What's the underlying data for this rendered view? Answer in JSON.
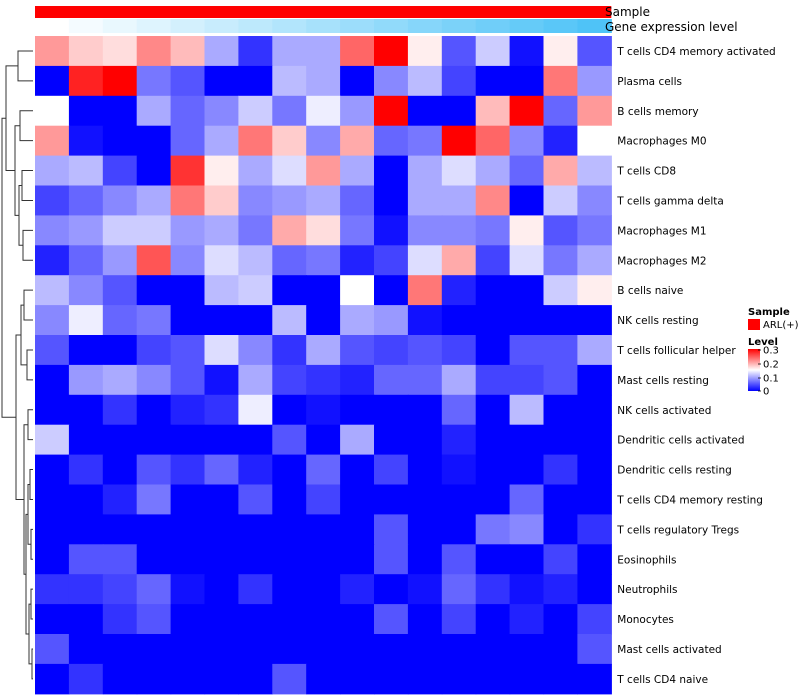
{
  "chart_data": {
    "type": "heatmap",
    "column_annotations": [
      {
        "name": "Sample",
        "color": "#ff0000"
      },
      {
        "name": "Gene expression level",
        "colors": [
          "#ffffff",
          "#4fc3f7"
        ]
      }
    ],
    "rows": [
      "T cells CD4 memory activated",
      "Plasma cells",
      "B cells memory",
      "Macrophages M0",
      "T cells CD8",
      "T cells gamma delta",
      "Macrophages M1",
      "Macrophages M2",
      "B cells naive",
      "NK cells resting",
      "T cells follicular helper",
      "Mast cells resting",
      "NK cells activated",
      "Dendritic cells activated",
      "Dendritic cells resting",
      "T cells CD4 memory resting",
      "T cells regulatory  Tregs",
      "Eosinophils",
      "Neutrophils",
      "Monocytes",
      "Mast cells activated",
      "T cells CD4 naive"
    ],
    "values": [
      [
        0.21,
        0.18,
        0.17,
        0.22,
        0.19,
        0.1,
        0.03,
        0.1,
        0.1,
        0.24,
        0.3,
        0.16,
        0.05,
        0.12,
        0.01,
        0.16,
        0.05
      ],
      [
        0.0,
        0.28,
        0.3,
        0.07,
        0.05,
        0.0,
        0.0,
        0.11,
        0.1,
        0.0,
        0.08,
        0.11,
        0.04,
        0.0,
        0.0,
        0.23,
        0.09
      ],
      [
        0.15,
        0.0,
        0.0,
        0.1,
        0.06,
        0.08,
        0.12,
        0.07,
        0.14,
        0.09,
        0.3,
        0.0,
        0.0,
        0.19,
        0.3,
        0.06,
        0.21
      ],
      [
        0.21,
        0.01,
        0.0,
        0.0,
        0.06,
        0.1,
        0.23,
        0.18,
        0.08,
        0.2,
        0.06,
        0.07,
        0.3,
        0.24,
        0.08,
        0.02,
        0.15
      ],
      [
        0.1,
        0.11,
        0.04,
        0.0,
        0.27,
        0.16,
        0.1,
        0.13,
        0.21,
        0.1,
        0.0,
        0.1,
        0.13,
        0.1,
        0.06,
        0.2,
        0.11
      ],
      [
        0.04,
        0.06,
        0.08,
        0.1,
        0.23,
        0.18,
        0.08,
        0.09,
        0.1,
        0.06,
        0.0,
        0.1,
        0.1,
        0.22,
        0.0,
        0.12,
        0.08
      ],
      [
        0.08,
        0.09,
        0.12,
        0.12,
        0.09,
        0.1,
        0.07,
        0.2,
        0.17,
        0.07,
        0.01,
        0.08,
        0.08,
        0.07,
        0.16,
        0.05,
        0.07
      ],
      [
        0.02,
        0.06,
        0.09,
        0.25,
        0.08,
        0.13,
        0.11,
        0.06,
        0.07,
        0.02,
        0.04,
        0.13,
        0.2,
        0.04,
        0.13,
        0.07,
        0.1
      ],
      [
        0.11,
        0.08,
        0.05,
        0.0,
        0.0,
        0.11,
        0.12,
        0.0,
        0.0,
        0.15,
        0.0,
        0.23,
        0.02,
        0.0,
        0.0,
        0.12,
        0.16
      ],
      [
        0.08,
        0.14,
        0.06,
        0.07,
        0.0,
        0.0,
        0.0,
        0.11,
        0.0,
        0.1,
        0.09,
        0.01,
        0.0,
        0.0,
        0.0,
        0.0,
        0.0
      ],
      [
        0.05,
        0.0,
        0.0,
        0.04,
        0.05,
        0.13,
        0.08,
        0.03,
        0.1,
        0.05,
        0.04,
        0.05,
        0.04,
        0.0,
        0.05,
        0.05,
        0.1
      ],
      [
        0.0,
        0.09,
        0.1,
        0.08,
        0.05,
        0.01,
        0.1,
        0.04,
        0.03,
        0.02,
        0.06,
        0.06,
        0.1,
        0.04,
        0.04,
        0.05,
        0.0
      ],
      [
        0.0,
        0.0,
        0.03,
        0.0,
        0.02,
        0.03,
        0.14,
        0.0,
        0.01,
        0.0,
        0.0,
        0.0,
        0.06,
        0.0,
        0.11,
        0.0,
        0.0
      ],
      [
        0.12,
        0.0,
        0.0,
        0.0,
        0.0,
        0.0,
        0.0,
        0.05,
        0.0,
        0.1,
        0.0,
        0.0,
        0.02,
        0.0,
        0.0,
        0.0,
        0.0
      ],
      [
        0.0,
        0.03,
        0.0,
        0.05,
        0.03,
        0.06,
        0.02,
        0.0,
        0.06,
        0.0,
        0.04,
        0.0,
        0.01,
        0.0,
        0.0,
        0.03,
        0.0
      ],
      [
        0.0,
        0.0,
        0.02,
        0.07,
        0.0,
        0.0,
        0.05,
        0.0,
        0.04,
        0.0,
        0.0,
        0.0,
        0.0,
        0.0,
        0.06,
        0.0,
        0.0
      ],
      [
        0.0,
        0.0,
        0.0,
        0.0,
        0.0,
        0.0,
        0.0,
        0.0,
        0.0,
        0.0,
        0.05,
        0.0,
        0.0,
        0.07,
        0.08,
        0.0,
        0.03
      ],
      [
        0.0,
        0.05,
        0.05,
        0.0,
        0.0,
        0.0,
        0.0,
        0.0,
        0.0,
        0.0,
        0.05,
        0.0,
        0.05,
        0.0,
        0.0,
        0.04,
        0.0
      ],
      [
        0.03,
        0.03,
        0.04,
        0.06,
        0.01,
        0.0,
        0.03,
        0.0,
        0.0,
        0.02,
        0.0,
        0.01,
        0.06,
        0.03,
        0.01,
        0.02,
        0.0
      ],
      [
        0.0,
        0.0,
        0.03,
        0.05,
        0.0,
        0.0,
        0.0,
        0.0,
        0.0,
        0.0,
        0.05,
        0.0,
        0.04,
        0.0,
        0.02,
        0.0,
        0.04
      ],
      [
        0.05,
        0.0,
        0.0,
        0.0,
        0.0,
        0.0,
        0.0,
        0.0,
        0.0,
        0.0,
        0.0,
        0.0,
        0.0,
        0.0,
        0.0,
        0.0,
        0.05
      ],
      [
        0.0,
        0.03,
        0.0,
        0.0,
        0.0,
        0.0,
        0.0,
        0.05,
        0.0,
        0.0,
        0.0,
        0.0,
        0.0,
        0.0,
        0.0,
        0.0,
        0.0
      ]
    ],
    "color_scale": {
      "low": "#0000ff",
      "mid": "#ffffff",
      "high": "#ff0000",
      "min": 0,
      "mid_value": 0.15,
      "max": 0.3
    },
    "legend": {
      "placement": "right",
      "sample_title": "Sample",
      "sample_item": "ARL(+)",
      "sample_color": "#ff0000",
      "level_title": "Level",
      "level_ticks": [
        "0.3",
        "0.2",
        "0.1",
        "0"
      ]
    },
    "dendrogram": "rows"
  }
}
